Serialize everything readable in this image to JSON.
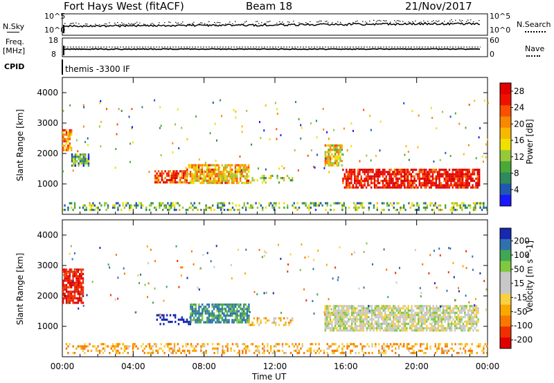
{
  "header": {
    "station": "Fort Hays West (fitACF)",
    "beam": "Beam 18",
    "date": "21/Nov/2017"
  },
  "strips": {
    "nsky_label": "N.Sky",
    "nsky_ticks": [
      "10^5",
      "10^0"
    ],
    "nsearch_label": "N.Search",
    "nsearch_ticks": [
      "10^5",
      "10^0"
    ],
    "freq_label_1": "Freq.",
    "freq_label_2": "[MHz]",
    "freq_ticks": [
      "18",
      "8"
    ],
    "nave_label": "Nave",
    "nave_ticks": [
      "60",
      "0"
    ],
    "cpid_label": "CPID",
    "cpid_text": "themis -3300 IF"
  },
  "colors": {
    "power_scale": [
      "#1818ff",
      "#2058b0",
      "#2e8a5a",
      "#4aa83a",
      "#96c83a",
      "#f0e000",
      "#f8b800",
      "#f88800",
      "#f85000",
      "#f01000",
      "#e00000"
    ],
    "velocity_scale": [
      "#e00000",
      "#f03000",
      "#f87800",
      "#f8a800",
      "#f8d040",
      "#c8c8c8",
      "#c8c8c8",
      "#80c840",
      "#40a850",
      "#3070b0",
      "#1828b0"
    ]
  },
  "chart_data": [
    {
      "type": "heatmap",
      "name": "power",
      "ylabel": "Slant Range [km]",
      "y_ticks": [
        "1000",
        "2000",
        "3000",
        "4000"
      ],
      "ylim": [
        0,
        4500
      ],
      "x_ticks": [
        "00:00",
        "04:00",
        "08:00",
        "12:00",
        "16:00",
        "20:00",
        "00:00"
      ],
      "xlim_hours": [
        0,
        24
      ],
      "colorbar_label": "Power [dB]",
      "colorbar_ticks": [
        "4",
        "8",
        "12",
        "16",
        "20",
        "24",
        "28"
      ],
      "colorbar_range": [
        0,
        30
      ],
      "regions": [
        {
          "t": [
            0.0,
            0.5
          ],
          "range": [
            2100,
            2800
          ],
          "value": 20
        },
        {
          "t": [
            0.5,
            1.5
          ],
          "range": [
            1600,
            2000
          ],
          "value": 8
        },
        {
          "t": [
            5.2,
            7.0
          ],
          "range": [
            1050,
            1450
          ],
          "value": 24
        },
        {
          "t": [
            7.0,
            10.5
          ],
          "range": [
            1050,
            1650
          ],
          "value": 18
        },
        {
          "t": [
            10.5,
            13.0
          ],
          "range": [
            1050,
            1300
          ],
          "value": 12
        },
        {
          "t": [
            14.8,
            15.8
          ],
          "range": [
            1600,
            2300
          ],
          "value": 16
        },
        {
          "t": [
            15.8,
            23.5
          ],
          "range": [
            850,
            1500
          ],
          "value": 28
        },
        {
          "t": [
            0.0,
            24.0
          ],
          "range": [
            150,
            400
          ],
          "value": 10
        }
      ]
    },
    {
      "type": "heatmap",
      "name": "velocity",
      "ylabel": "Slant Range [km]",
      "y_ticks": [
        "1000",
        "2000",
        "3000",
        "4000"
      ],
      "ylim": [
        0,
        4500
      ],
      "x_ticks": [
        "00:00",
        "04:00",
        "08:00",
        "12:00",
        "16:00",
        "20:00",
        "00:00"
      ],
      "xlim_hours": [
        0,
        24
      ],
      "xlabel": "Time UT",
      "colorbar_label": "Velocity [m s^-1]",
      "colorbar_ticks": [
        "200",
        "100",
        "50",
        "15",
        "-15",
        "-50",
        "-100",
        "-200"
      ],
      "regions": [
        {
          "t": [
            0.0,
            1.2
          ],
          "range": [
            1800,
            2900
          ],
          "value": -200
        },
        {
          "t": [
            5.3,
            7.2
          ],
          "range": [
            1050,
            1400
          ],
          "value": 150
        },
        {
          "t": [
            7.2,
            10.5
          ],
          "range": [
            1100,
            1750
          ],
          "value": 50
        },
        {
          "t": [
            10.5,
            13.0
          ],
          "range": [
            1050,
            1300
          ],
          "value": -30
        },
        {
          "t": [
            14.8,
            23.5
          ],
          "range": [
            900,
            1700
          ],
          "value": 0
        },
        {
          "t": [
            0.0,
            24.0
          ],
          "range": [
            150,
            450
          ],
          "value": -40
        }
      ]
    }
  ]
}
